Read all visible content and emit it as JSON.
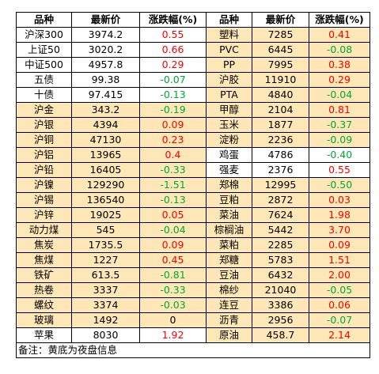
{
  "headers": {
    "name": "品种",
    "price": "最新价",
    "change": "涨跌幅(%)"
  },
  "colors": {
    "night_highlight": "#fde7b6",
    "up": "#ff0000",
    "down": "#00a933",
    "flat": "#000000"
  },
  "rows": [
    {
      "left": {
        "name": "沪深300",
        "price": "3974.2",
        "change": "0.55",
        "dir": "up",
        "night": false
      },
      "right": {
        "name": "塑料",
        "price": "7285",
        "change": "0.41",
        "dir": "up",
        "night": true
      }
    },
    {
      "left": {
        "name": "上证50",
        "price": "3020.2",
        "change": "0.66",
        "dir": "up",
        "night": false
      },
      "right": {
        "name": "PVC",
        "price": "6445",
        "change": "-0.08",
        "dir": "down",
        "night": true
      }
    },
    {
      "left": {
        "name": "中证500",
        "price": "4957.8",
        "change": "0.29",
        "dir": "up",
        "night": false
      },
      "right": {
        "name": "PP",
        "price": "7995",
        "change": "0.38",
        "dir": "up",
        "night": true
      }
    },
    {
      "left": {
        "name": "五债",
        "price": "99.38",
        "change": "-0.07",
        "dir": "down",
        "night": false
      },
      "right": {
        "name": "沪胶",
        "price": "11910",
        "change": "0.29",
        "dir": "up",
        "night": true
      }
    },
    {
      "left": {
        "name": "十债",
        "price": "97.415",
        "change": "-0.13",
        "dir": "down",
        "night": false
      },
      "right": {
        "name": "PTA",
        "price": "4840",
        "change": "-0.04",
        "dir": "down",
        "night": true
      }
    },
    {
      "left": {
        "name": "沪金",
        "price": "343.2",
        "change": "-0.19",
        "dir": "down",
        "night": true
      },
      "right": {
        "name": "甲醇",
        "price": "2104",
        "change": "0.81",
        "dir": "up",
        "night": true
      }
    },
    {
      "left": {
        "name": "沪银",
        "price": "4394",
        "change": "0.09",
        "dir": "up",
        "night": true
      },
      "right": {
        "name": "玉米",
        "price": "1877",
        "change": "-0.37",
        "dir": "down",
        "night": true
      }
    },
    {
      "left": {
        "name": "沪铜",
        "price": "47130",
        "change": "0.23",
        "dir": "up",
        "night": true
      },
      "right": {
        "name": "淀粉",
        "price": "2236",
        "change": "-0.09",
        "dir": "down",
        "night": true
      }
    },
    {
      "left": {
        "name": "沪铝",
        "price": "13965",
        "change": "0.4",
        "dir": "up",
        "night": true
      },
      "right": {
        "name": "鸡蛋",
        "price": "4786",
        "change": "-0.40",
        "dir": "down",
        "night": false
      }
    },
    {
      "left": {
        "name": "沪铅",
        "price": "16405",
        "change": "-0.33",
        "dir": "down",
        "night": true
      },
      "right": {
        "name": "强麦",
        "price": "2376",
        "change": "0.55",
        "dir": "up",
        "night": false
      }
    },
    {
      "left": {
        "name": "沪镍",
        "price": "129290",
        "change": "-1.51",
        "dir": "down",
        "night": true
      },
      "right": {
        "name": "郑棉",
        "price": "12995",
        "change": "-0.50",
        "dir": "down",
        "night": true
      }
    },
    {
      "left": {
        "name": "沪锡",
        "price": "136540",
        "change": "-0.13",
        "dir": "down",
        "night": true
      },
      "right": {
        "name": "豆粕",
        "price": "2872",
        "change": "0.03",
        "dir": "up",
        "night": true
      }
    },
    {
      "left": {
        "name": "沪锌",
        "price": "19025",
        "change": "0.05",
        "dir": "up",
        "night": true
      },
      "right": {
        "name": "菜油",
        "price": "7624",
        "change": "1.98",
        "dir": "up",
        "night": true
      }
    },
    {
      "left": {
        "name": "动力煤",
        "price": "545",
        "change": "-0.04",
        "dir": "down",
        "night": true
      },
      "right": {
        "name": "棕榈油",
        "price": "5442",
        "change": "3.70",
        "dir": "up",
        "night": true
      }
    },
    {
      "left": {
        "name": "焦炭",
        "price": "1735.5",
        "change": "0.09",
        "dir": "up",
        "night": true
      },
      "right": {
        "name": "菜粕",
        "price": "2285",
        "change": "0.09",
        "dir": "up",
        "night": true
      }
    },
    {
      "left": {
        "name": "焦煤",
        "price": "1227",
        "change": "0.45",
        "dir": "up",
        "night": true
      },
      "right": {
        "name": "郑糖",
        "price": "5783",
        "change": "1.51",
        "dir": "up",
        "night": true
      }
    },
    {
      "left": {
        "name": "铁矿",
        "price": "613.5",
        "change": "-0.81",
        "dir": "down",
        "night": true
      },
      "right": {
        "name": "豆油",
        "price": "6432",
        "change": "2.00",
        "dir": "up",
        "night": true
      }
    },
    {
      "left": {
        "name": "热卷",
        "price": "3337",
        "change": "-0.33",
        "dir": "down",
        "night": true
      },
      "right": {
        "name": "棉纱",
        "price": "21040",
        "change": "-0.05",
        "dir": "down",
        "night": true
      }
    },
    {
      "left": {
        "name": "螺纹",
        "price": "3374",
        "change": "-0.03",
        "dir": "down",
        "night": true
      },
      "right": {
        "name": "连豆",
        "price": "3386",
        "change": "0.06",
        "dir": "up",
        "night": true
      }
    },
    {
      "left": {
        "name": "玻璃",
        "price": "1492",
        "change": "0",
        "dir": "flat",
        "night": true
      },
      "right": {
        "name": "沥青",
        "price": "2956",
        "change": "-0.07",
        "dir": "down",
        "night": true
      }
    },
    {
      "left": {
        "name": "苹果",
        "price": "8030",
        "change": "1.92",
        "dir": "up",
        "night": false
      },
      "right": {
        "name": "原油",
        "price": "458.7",
        "change": "2.14",
        "dir": "up",
        "night": true
      }
    }
  ],
  "footer": {
    "note": "备注：黄底为夜盘信息"
  }
}
